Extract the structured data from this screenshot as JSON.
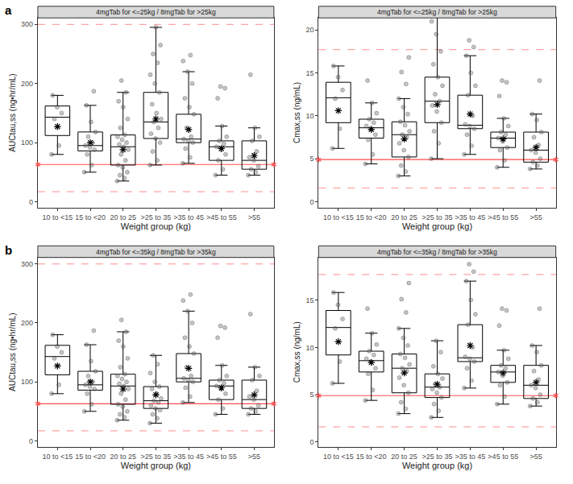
{
  "chart_data": [
    {
      "type": "box",
      "panel_label": "a",
      "title": "4mgTab for <=25kg / 8mgTab for >25kg",
      "x_label": "Weight group (kg)",
      "y_label": "AUCtau,ss (ng•hr/mL)",
      "color": "#000000",
      "mean_marker": "asterisk",
      "grid": false,
      "categories": [
        "10 to <15",
        "15 to <20",
        "20 to 25",
        ">25 to 35",
        ">35 to 45",
        ">45 to 55",
        ">55"
      ],
      "q1": [
        112,
        86,
        62,
        107,
        100,
        70,
        55
      ],
      "median": [
        143,
        95,
        93,
        135,
        106,
        93,
        70
      ],
      "q3": [
        162,
        118,
        113,
        185,
        148,
        103,
        103
      ],
      "lower_whisker": [
        80,
        50,
        35,
        62,
        65,
        45,
        45
      ],
      "upper_whisker": [
        180,
        163,
        185,
        295,
        220,
        128,
        125
      ],
      "mean": [
        127,
        100,
        88,
        140,
        122,
        90,
        78
      ],
      "points": [
        [
          80,
          95,
          140,
          150,
          160,
          180
        ],
        [
          50,
          62,
          80,
          88,
          92,
          95,
          100,
          110,
          118,
          135,
          163,
          187
        ],
        [
          35,
          40,
          45,
          50,
          58,
          62,
          70,
          80,
          88,
          93,
          97,
          100,
          105,
          110,
          113,
          125,
          140,
          160,
          170,
          185,
          205
        ],
        [
          62,
          70,
          85,
          100,
          107,
          115,
          125,
          135,
          140,
          150,
          165,
          185,
          200,
          215,
          235,
          250,
          265,
          295
        ],
        [
          65,
          75,
          90,
          100,
          103,
          106,
          110,
          125,
          148,
          160,
          175,
          200,
          220,
          238,
          248
        ],
        [
          45,
          55,
          70,
          80,
          88,
          93,
          98,
          103,
          110,
          128,
          175,
          192,
          195
        ],
        [
          45,
          50,
          55,
          60,
          70,
          75,
          85,
          103,
          110,
          125,
          215
        ]
      ],
      "ylim": [
        -10,
        311
      ],
      "yticks": [
        0,
        100,
        200,
        300
      ],
      "reference_lines": [
        {
          "value": 63,
          "line_style": "solid",
          "color": "#ff4d4d",
          "marker": "asterisk"
        },
        {
          "value": 17,
          "line_style": "dash",
          "color": "#ff8080"
        },
        {
          "value": 300,
          "line_style": "dash",
          "color": "#ff8080"
        }
      ]
    },
    {
      "type": "box",
      "title": "4mgTab for <=25kg / 8mgTab for >25kg",
      "x_label": "Weight group (kg)",
      "y_label": "Cmax,ss (ng/mL)",
      "color": "#000000",
      "mean_marker": "asterisk",
      "grid": false,
      "categories": [
        "10 to <15",
        "15 to <20",
        "20 to 25",
        ">25 to 35",
        ">35 to 45",
        ">45 to 55",
        ">55"
      ],
      "q1": [
        9.2,
        7.4,
        5.2,
        9.2,
        8.5,
        6.3,
        4.6
      ],
      "median": [
        12.1,
        8.6,
        7.8,
        11.7,
        8.9,
        7.4,
        6.0
      ],
      "q3": [
        13.9,
        9.6,
        9.3,
        14.5,
        12.4,
        8.1,
        8.1
      ],
      "lower_whisker": [
        6.2,
        4.4,
        3.0,
        5.0,
        5.5,
        4.0,
        3.8
      ],
      "upper_whisker": [
        15.8,
        11.5,
        12.0,
        21.7,
        17.0,
        9.7,
        10.2
      ],
      "mean": [
        10.6,
        8.4,
        7.3,
        11.3,
        10.2,
        7.3,
        6.3
      ],
      "points": [
        [
          6.2,
          8.5,
          12,
          13,
          14.5,
          15.8
        ],
        [
          4.4,
          5.5,
          7.2,
          7.8,
          8.5,
          8.8,
          9.2,
          9.6,
          10.3,
          11.5,
          14.1
        ],
        [
          3.0,
          3.5,
          4.2,
          5.2,
          6.0,
          6.8,
          7.5,
          7.8,
          8.2,
          8.9,
          9.3,
          10.2,
          11.0,
          12.0,
          13.7,
          15.1,
          16.8
        ],
        [
          5.0,
          6.8,
          8.2,
          9.2,
          10.5,
          11.2,
          11.7,
          12.5,
          13.5,
          14.5,
          16.0,
          17.5,
          19.5,
          21.0,
          21.7
        ],
        [
          5.5,
          6.5,
          7.8,
          8.5,
          8.8,
          9.0,
          10.0,
          12.4,
          13.5,
          15.0,
          17.0,
          18.0,
          18.8
        ],
        [
          4.0,
          4.8,
          6.0,
          6.3,
          7.0,
          7.4,
          7.8,
          8.1,
          8.8,
          9.7,
          12.3,
          13.9,
          14.1
        ],
        [
          3.8,
          4.2,
          4.6,
          5.0,
          5.7,
          6.0,
          6.6,
          7.5,
          8.1,
          9.5,
          10.2,
          14.1
        ]
      ],
      "ylim": [
        -0.7,
        21.4
      ],
      "yticks": [
        0,
        5,
        10,
        15,
        20
      ],
      "reference_lines": [
        {
          "value": 4.9,
          "line_style": "solid",
          "color": "#ff4d4d",
          "marker": "asterisk"
        },
        {
          "value": 1.6,
          "line_style": "dash",
          "color": "#ff8080"
        },
        {
          "value": 17.7,
          "line_style": "dash",
          "color": "#ff8080"
        }
      ]
    },
    {
      "type": "box",
      "panel_label": "b",
      "title": "4mgTab for <=35kg / 8mgTab for >35kg",
      "x_label": "Weight group (kg)",
      "y_label": "AUCtau,ss (ng•hr/mL)",
      "color": "#000000",
      "mean_marker": "asterisk",
      "grid": false,
      "categories": [
        "10 to <15",
        "15 to <20",
        "20 to 25",
        ">25 to 35",
        ">35 to 45",
        ">45 to 55",
        ">55"
      ],
      "q1": [
        112,
        86,
        62,
        55,
        100,
        70,
        55
      ],
      "median": [
        143,
        95,
        93,
        68,
        106,
        93,
        70
      ],
      "q3": [
        162,
        118,
        113,
        92,
        148,
        103,
        103
      ],
      "lower_whisker": [
        80,
        50,
        35,
        30,
        65,
        45,
        45
      ],
      "upper_whisker": [
        180,
        163,
        185,
        145,
        220,
        128,
        125
      ],
      "mean": [
        127,
        100,
        88,
        78,
        123,
        90,
        78
      ],
      "points": [
        [
          80,
          95,
          140,
          150,
          160,
          180
        ],
        [
          50,
          62,
          80,
          88,
          92,
          95,
          100,
          110,
          118,
          135,
          163,
          187
        ],
        [
          35,
          40,
          45,
          50,
          58,
          62,
          70,
          80,
          88,
          93,
          97,
          100,
          105,
          110,
          113,
          125,
          140,
          160,
          170,
          185,
          205
        ],
        [
          30,
          38,
          45,
          52,
          55,
          60,
          65,
          68,
          72,
          80,
          88,
          92,
          100,
          115,
          130,
          145
        ],
        [
          65,
          75,
          90,
          100,
          103,
          106,
          110,
          125,
          148,
          160,
          175,
          200,
          220,
          238,
          248
        ],
        [
          45,
          55,
          70,
          80,
          88,
          93,
          98,
          103,
          110,
          128,
          175,
          192,
          195
        ],
        [
          45,
          50,
          55,
          60,
          70,
          75,
          85,
          103,
          110,
          125,
          215
        ]
      ],
      "ylim": [
        -10,
        311
      ],
      "yticks": [
        0,
        100,
        200,
        300
      ],
      "reference_lines": [
        {
          "value": 63,
          "line_style": "solid",
          "color": "#ff4d4d",
          "marker": "asterisk"
        },
        {
          "value": 17,
          "line_style": "dash",
          "color": "#ff8080"
        },
        {
          "value": 300,
          "line_style": "dash",
          "color": "#ff8080"
        }
      ]
    },
    {
      "type": "box",
      "title": "4mgTab for <=35kg / 8mgTab for >35kg",
      "x_label": "Weight group (kg)",
      "y_label": "Cmax,ss (ng/mL)",
      "color": "#000000",
      "mean_marker": "asterisk",
      "grid": false,
      "categories": [
        "10 to <15",
        "15 to <20",
        "20 to 25",
        ">25 to 35",
        ">35 to 45",
        ">45 to 55",
        ">55"
      ],
      "q1": [
        9.2,
        7.4,
        5.2,
        4.7,
        8.5,
        6.3,
        4.6
      ],
      "median": [
        12.1,
        8.6,
        7.8,
        5.8,
        8.9,
        7.4,
        6.0
      ],
      "q3": [
        13.9,
        9.6,
        9.3,
        7.2,
        12.4,
        8.1,
        8.1
      ],
      "lower_whisker": [
        6.2,
        4.4,
        3.0,
        2.6,
        5.7,
        4.0,
        3.8
      ],
      "upper_whisker": [
        15.8,
        11.5,
        12.0,
        10.7,
        17.0,
        9.7,
        10.2
      ],
      "mean": [
        10.6,
        8.4,
        7.3,
        6.1,
        10.2,
        7.3,
        6.3
      ],
      "points": [
        [
          6.2,
          8.5,
          12,
          13,
          14.5,
          15.8
        ],
        [
          4.4,
          5.5,
          7.2,
          7.8,
          8.5,
          8.8,
          9.2,
          9.6,
          10.3,
          11.5,
          14.1
        ],
        [
          3.0,
          3.5,
          4.2,
          5.2,
          6.0,
          6.8,
          7.5,
          7.8,
          8.2,
          8.9,
          9.3,
          10.2,
          11.0,
          12.0,
          13.7,
          15.1,
          16.8
        ],
        [
          2.6,
          3.3,
          4.0,
          4.7,
          5.2,
          5.6,
          5.8,
          6.1,
          6.7,
          7.2,
          8.0,
          9.5,
          10.7
        ],
        [
          5.7,
          6.5,
          7.8,
          8.5,
          8.8,
          9.0,
          10.0,
          12.4,
          13.5,
          15.0,
          17.0,
          18.0,
          18.8
        ],
        [
          4.0,
          4.8,
          6.0,
          6.3,
          7.0,
          7.4,
          7.8,
          8.1,
          8.8,
          9.7,
          12.3,
          13.9,
          14.1
        ],
        [
          3.8,
          4.2,
          4.6,
          5.0,
          5.7,
          6.0,
          6.6,
          7.5,
          8.1,
          9.5,
          10.2,
          14.1
        ]
      ],
      "ylim": [
        -0.5,
        19.5
      ],
      "yticks": [
        0,
        5,
        10,
        15
      ],
      "reference_lines": [
        {
          "value": 4.9,
          "line_style": "solid",
          "color": "#ff4d4d",
          "marker": "asterisk"
        },
        {
          "value": 1.6,
          "line_style": "dash",
          "color": "#ff8080"
        },
        {
          "value": 17.7,
          "line_style": "dash",
          "color": "#ff8080"
        }
      ]
    }
  ]
}
